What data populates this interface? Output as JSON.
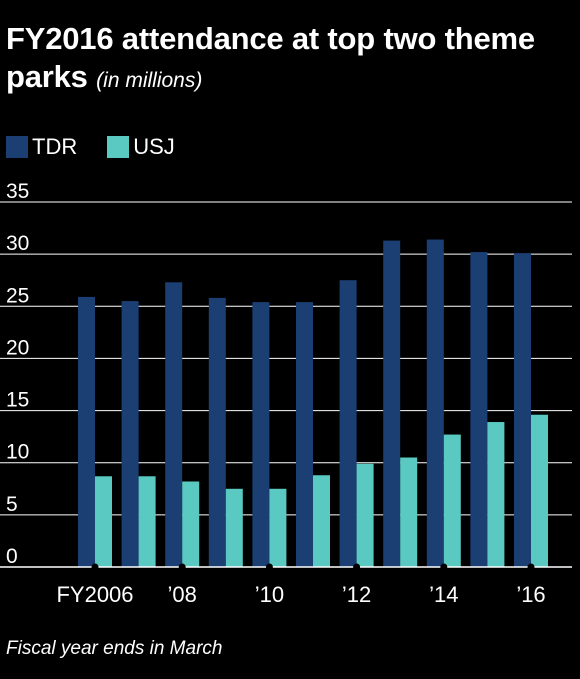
{
  "header": {
    "title": "FY2016 attendance at top two theme parks",
    "subtitle": "(in millions)"
  },
  "footnote": "Fiscal year ends in March",
  "colors": {
    "background": "#000000",
    "tdr": "#1c3f73",
    "usj": "#59c9c1",
    "text": "#ffffff",
    "grid": "#ffffff"
  },
  "chart_data": {
    "type": "bar",
    "title": "FY2016 attendance at top two theme parks",
    "subtitle": "(in millions)",
    "xlabel": "",
    "ylabel": "",
    "ylim": [
      0,
      35
    ],
    "yticks": [
      0,
      5,
      10,
      15,
      20,
      25,
      30,
      35
    ],
    "grid": true,
    "legend_position": "top-left",
    "categories": [
      "FY2006",
      "FY2007",
      "FY2008",
      "FY2009",
      "FY2010",
      "FY2011",
      "FY2012",
      "FY2013",
      "FY2014",
      "FY2015",
      "FY2016"
    ],
    "xtick_labels": [
      {
        "category_index": 0,
        "label": "FY2006"
      },
      {
        "category_index": 2,
        "label": "’08"
      },
      {
        "category_index": 4,
        "label": "’10"
      },
      {
        "category_index": 6,
        "label": "’12"
      },
      {
        "category_index": 8,
        "label": "’14"
      },
      {
        "category_index": 10,
        "label": "’16"
      }
    ],
    "series": [
      {
        "name": "TDR",
        "values": [
          25.9,
          25.5,
          27.3,
          25.8,
          25.4,
          25.4,
          27.5,
          31.3,
          31.4,
          30.2,
          30.1
        ]
      },
      {
        "name": "USJ",
        "values": [
          8.7,
          8.7,
          8.2,
          7.5,
          7.5,
          8.8,
          9.9,
          10.5,
          12.7,
          13.9,
          14.6
        ]
      }
    ]
  }
}
